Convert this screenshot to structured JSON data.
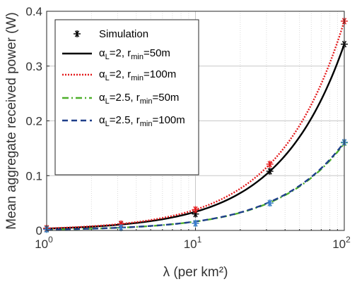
{
  "chart_data": {
    "type": "line",
    "xscale": "log",
    "xlim": [
      1,
      100
    ],
    "ylim": [
      0,
      0.4
    ],
    "grid": true,
    "legend_placement": "top-left",
    "xlabel": "λ (per km²)",
    "ylabel": "Mean aggregate received power (W)",
    "x_ticks": [
      {
        "base": "10",
        "exp": "0",
        "value": 1
      },
      {
        "base": "10",
        "exp": "1",
        "value": 10
      },
      {
        "base": "10",
        "exp": "2",
        "value": 100
      }
    ],
    "y_ticks": [
      {
        "label": "0",
        "value": 0
      },
      {
        "label": "0.1",
        "value": 0.1
      },
      {
        "label": "0.2",
        "value": 0.2
      },
      {
        "label": "0.3",
        "value": 0.3
      },
      {
        "label": "0.4",
        "value": 0.4
      }
    ],
    "series": [
      {
        "legend": {
          "pre": "α",
          "sub1": "L",
          "mid": "=2, r",
          "sub2": "min",
          "post": "=50m"
        },
        "color": "#000000",
        "dash": "solid",
        "x": [
          1,
          3.16,
          10,
          31.6,
          100
        ],
        "values": [
          0.0034,
          0.0108,
          0.034,
          0.108,
          0.34
        ],
        "sim_x": [
          1,
          3.16,
          10,
          31.6,
          100
        ],
        "sim_values": [
          0.003,
          0.011,
          0.03,
          0.108,
          0.34
        ],
        "sim_color": "#000000"
      },
      {
        "legend": {
          "pre": "α",
          "sub1": "L",
          "mid": "=2, r",
          "sub2": "min",
          "post": "=100m"
        },
        "color": "#e41a1c",
        "dash": "dotted",
        "x": [
          1,
          3.16,
          10,
          31.6,
          100
        ],
        "values": [
          0.0038,
          0.012,
          0.038,
          0.121,
          0.382
        ],
        "sim_x": [
          1,
          3.16,
          10,
          31.6,
          100
        ],
        "sim_values": [
          0.004,
          0.012,
          0.038,
          0.121,
          0.382
        ],
        "sim_color": "#e41a1c"
      },
      {
        "legend": {
          "pre": "α",
          "sub1": "L",
          "mid": "=2.5, r",
          "sub2": "min",
          "post": "=50m"
        },
        "color": "#4daf2a",
        "dash": "dashdot",
        "x": [
          1,
          3.16,
          10,
          31.6,
          100
        ],
        "values": [
          0.0016,
          0.0051,
          0.0162,
          0.051,
          0.159
        ],
        "sim_x": [
          1,
          3.16,
          10,
          31.6,
          100
        ],
        "sim_values": [
          0.002,
          0.005,
          0.013,
          0.05,
          0.16
        ],
        "sim_color": "#4daf2a"
      },
      {
        "legend": {
          "pre": "α",
          "sub1": "L",
          "mid": "=2.5, r",
          "sub2": "min",
          "post": "=100m"
        },
        "color": "#1f3f8a",
        "dash": "dashed",
        "x": [
          1,
          3.16,
          10,
          31.6,
          100
        ],
        "values": [
          0.0016,
          0.0052,
          0.0163,
          0.052,
          0.161
        ],
        "sim_x": [
          1,
          3.16,
          10,
          31.6,
          100
        ],
        "sim_values": [
          0.002,
          0.005,
          0.013,
          0.05,
          0.161
        ],
        "sim_color": "#3a7bd5"
      }
    ],
    "simulation_legend": "Simulation"
  }
}
